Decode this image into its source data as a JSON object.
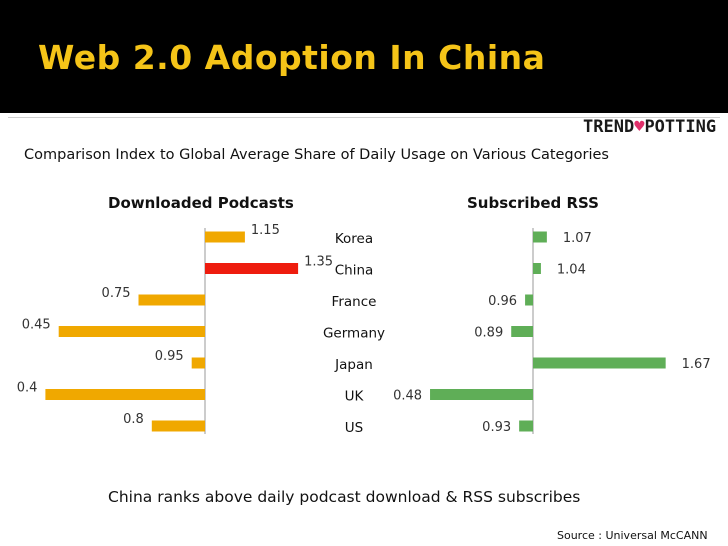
{
  "header": {
    "title": "Web 2.0 Adoption In China"
  },
  "logo": {
    "text_left": "TREND",
    "text_right": "POTTING"
  },
  "subtitle": "Comparison Index to Global Average Share of Daily Usage on  Various Categories",
  "caption": "China  ranks  above daily podcast download & RSS subscribes",
  "source": "Source : Universal McCANN",
  "colors": {
    "title": "#f5c418",
    "podcasts_bar": "#f0a800",
    "podcasts_highlight": "#ee1c0e",
    "rss_bar": "#5fae57",
    "axis": "#999999"
  },
  "chart_data": [
    {
      "type": "bar",
      "orientation": "horizontal",
      "title": "Downloaded Podcasts",
      "categories": [
        "Korea",
        "China",
        "France",
        "Germany",
        "Japan",
        "UK",
        "US"
      ],
      "baseline": 1.0,
      "values": [
        1.15,
        1.35,
        0.75,
        0.45,
        0.95,
        0.4,
        0.8
      ],
      "labels": [
        "1.15",
        "1.35",
        "0.75",
        "0.45",
        "0.95",
        "0.4",
        "0.8"
      ],
      "highlight": "China"
    },
    {
      "type": "bar",
      "orientation": "horizontal",
      "title": "Subscribed RSS",
      "categories": [
        "Korea",
        "China",
        "France",
        "Germany",
        "Japan",
        "UK",
        "US"
      ],
      "baseline": 1.0,
      "values": [
        1.07,
        1.04,
        0.96,
        0.89,
        1.67,
        0.48,
        0.93
      ],
      "labels": [
        "1.07",
        "1.04",
        "0.96",
        "0.89",
        "1.67",
        "0.48",
        "0.93"
      ]
    }
  ]
}
